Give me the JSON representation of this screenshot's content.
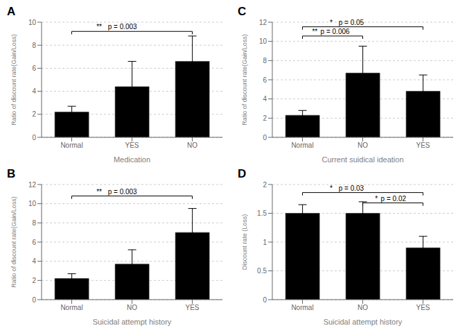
{
  "chart_data": [
    {
      "type": "bar",
      "title": "A",
      "xlabel": "Medication",
      "ylabel": "Ratio of discount rate(Gain/Loss)",
      "categories": [
        "Normal",
        "YES",
        "NO"
      ],
      "values": [
        2.2,
        4.4,
        6.6
      ],
      "errors": [
        0.5,
        2.2,
        2.2
      ],
      "ylim": [
        0,
        10
      ],
      "yticks": [
        0,
        2,
        4,
        6,
        8,
        10
      ],
      "grid": true,
      "annotations": [
        {
          "from": "Normal",
          "to": "NO",
          "y": 9.2,
          "stars": "**",
          "text": "p = 0.003"
        }
      ]
    },
    {
      "type": "bar",
      "title": "C",
      "xlabel": "Current suidical ideation",
      "ylabel": "Ratio of discount rate(Gain/Loss)",
      "categories": [
        "Normal",
        "NO",
        "YES"
      ],
      "values": [
        2.3,
        6.7,
        4.8
      ],
      "errors": [
        0.5,
        2.8,
        1.7
      ],
      "ylim": [
        0,
        12
      ],
      "yticks": [
        0,
        2,
        4,
        6,
        8,
        10,
        12
      ],
      "grid": true,
      "annotations": [
        {
          "from": "Normal",
          "to": "NO",
          "y": 10.56,
          "stars": "**",
          "text": "p = 0.006"
        },
        {
          "from": "Normal",
          "to": "YES",
          "y": 11.52,
          "stars": "*",
          "text": "p = 0.05"
        }
      ]
    },
    {
      "type": "bar",
      "title": "B",
      "xlabel": "Suicidal attempt history",
      "ylabel": "Ratio of discount rate(Gain/Loss)",
      "categories": [
        "Normal",
        "NO",
        "YES"
      ],
      "values": [
        2.2,
        3.7,
        7.0
      ],
      "errors": [
        0.5,
        1.5,
        2.5
      ],
      "ylim": [
        0,
        12
      ],
      "yticks": [
        0,
        2,
        4,
        6,
        8,
        10,
        12
      ],
      "grid": true,
      "annotations": [
        {
          "from": "Normal",
          "to": "YES",
          "y": 10.8,
          "stars": "**",
          "text": "p = 0.003"
        }
      ]
    },
    {
      "type": "bar",
      "title": "D",
      "xlabel": "Suicidal attempt history",
      "ylabel": "Discount rate (Loss)",
      "categories": [
        "Normal",
        "NO",
        "YES"
      ],
      "values": [
        1.5,
        1.5,
        0.9
      ],
      "errors": [
        0.15,
        0.2,
        0.2
      ],
      "ylim": [
        0,
        2
      ],
      "yticks": [
        0,
        0.5,
        1,
        1.5,
        2
      ],
      "grid": true,
      "annotations": [
        {
          "from": "Normal",
          "to": "YES",
          "y": 1.86,
          "stars": "*",
          "text": "p = 0.03"
        },
        {
          "from": "NO",
          "to": "YES",
          "y": 1.68,
          "stars": "*",
          "text": "p = 0.02"
        }
      ]
    }
  ]
}
